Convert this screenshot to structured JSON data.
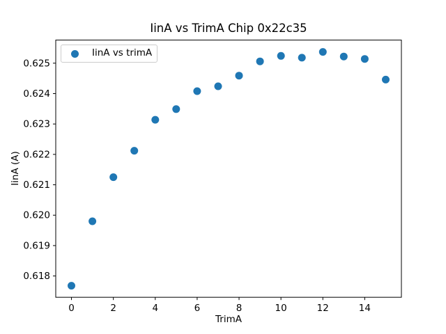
{
  "chart_data": {
    "type": "scatter",
    "title": "IinA vs TrimA Chip 0x22c35",
    "xlabel": "TrimA",
    "ylabel": "IinA (A)",
    "legend": [
      {
        "label": "IinA vs trimA",
        "marker": "circle",
        "color": "#1f77b4"
      }
    ],
    "legend_position": "upper left",
    "grid": false,
    "x": [
      0,
      1,
      2,
      3,
      4,
      5,
      6,
      7,
      8,
      9,
      10,
      11,
      12,
      13,
      14,
      15
    ],
    "y": [
      0.61768,
      0.6198,
      0.62125,
      0.62212,
      0.62314,
      0.62349,
      0.62408,
      0.62424,
      0.62459,
      0.62506,
      0.62524,
      0.62518,
      0.62537,
      0.62522,
      0.62514,
      0.62446
    ],
    "xlim": [
      -0.75,
      15.75
    ],
    "ylim": [
      0.6173,
      0.62576
    ],
    "xticks": {
      "values": [
        0,
        2,
        4,
        6,
        8,
        10,
        12,
        14
      ],
      "labels": [
        "0",
        "2",
        "4",
        "6",
        "8",
        "10",
        "12",
        "14"
      ]
    },
    "yticks": {
      "values": [
        0.618,
        0.619,
        0.62,
        0.621,
        0.622,
        0.623,
        0.624,
        0.625
      ],
      "labels": [
        "0.618",
        "0.619",
        "0.620",
        "0.621",
        "0.622",
        "0.623",
        "0.624",
        "0.625"
      ]
    },
    "marker_color": "#1f77b4",
    "spine_color": "#000000",
    "legend_border_color": "#cccccc",
    "background_color": "#ffffff"
  }
}
